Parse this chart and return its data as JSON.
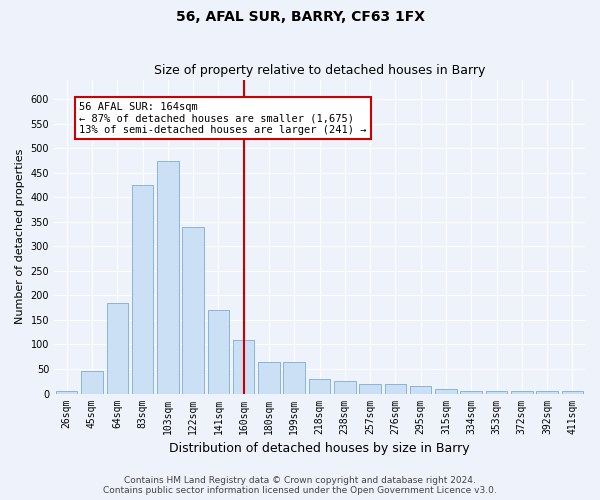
{
  "title": "56, AFAL SUR, BARRY, CF63 1FX",
  "subtitle": "Size of property relative to detached houses in Barry",
  "xlabel": "Distribution of detached houses by size in Barry",
  "ylabel": "Number of detached properties",
  "categories": [
    "26sqm",
    "45sqm",
    "64sqm",
    "83sqm",
    "103sqm",
    "122sqm",
    "141sqm",
    "160sqm",
    "180sqm",
    "199sqm",
    "218sqm",
    "238sqm",
    "257sqm",
    "276sqm",
    "295sqm",
    "315sqm",
    "334sqm",
    "353sqm",
    "372sqm",
    "392sqm",
    "411sqm"
  ],
  "values": [
    5,
    45,
    185,
    425,
    475,
    340,
    170,
    110,
    65,
    65,
    30,
    25,
    20,
    20,
    15,
    10,
    5,
    5,
    5,
    5,
    5
  ],
  "bar_color": "#cce0f5",
  "bar_edge_color": "#7aadd4",
  "line_color": "#cc0000",
  "line_x_index": 7,
  "annotation_text": "56 AFAL SUR: 164sqm\n← 87% of detached houses are smaller (1,675)\n13% of semi-detached houses are larger (241) →",
  "annotation_box_color": "#ffffff",
  "annotation_box_edge_color": "#cc0000",
  "ylim": [
    0,
    640
  ],
  "yticks": [
    0,
    50,
    100,
    150,
    200,
    250,
    300,
    350,
    400,
    450,
    500,
    550,
    600
  ],
  "footer_line1": "Contains HM Land Registry data © Crown copyright and database right 2024.",
  "footer_line2": "Contains public sector information licensed under the Open Government Licence v3.0.",
  "background_color": "#eef2fa",
  "grid_color": "#ffffff",
  "title_fontsize": 10,
  "subtitle_fontsize": 9,
  "xlabel_fontsize": 9,
  "ylabel_fontsize": 8,
  "tick_fontsize": 7,
  "footer_fontsize": 6.5,
  "ann_fontsize": 7.5
}
